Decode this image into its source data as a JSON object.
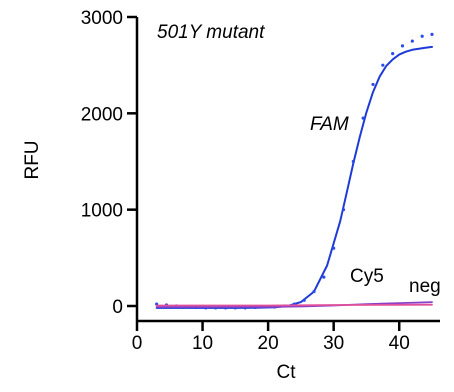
{
  "chart_data": {
    "type": "line",
    "title": "501Y mutant",
    "xlabel": "Ct",
    "ylabel": "RFU",
    "xlim": [
      0,
      45
    ],
    "ylim": [
      0,
      3000
    ],
    "x_ticks": [
      0,
      10,
      20,
      30,
      40
    ],
    "y_ticks": [
      0,
      1000,
      2000,
      3000
    ],
    "x_tick_labels": [
      "0",
      "10",
      "20",
      "30",
      "40"
    ],
    "y_tick_labels": [
      "0",
      "1000",
      "2000",
      "3000"
    ],
    "grid": false,
    "colors": {
      "fam": "#1f3bd6",
      "fam_dots": "#2a4be8",
      "cy5": "#8a3fc8",
      "neg": "#e0509a"
    },
    "annotations": {
      "fam": "FAM",
      "cy5": "Cy5",
      "neg": "neg"
    },
    "series": [
      {
        "name": "FAM",
        "style": "line",
        "x": [
          3,
          6,
          9,
          12,
          15,
          18,
          21,
          23,
          25,
          27,
          29,
          31,
          32,
          33,
          34,
          35,
          36,
          37,
          38,
          39,
          40,
          41,
          42,
          43,
          44,
          45
        ],
        "y": [
          -20,
          -20,
          -20,
          -20,
          -20,
          -18,
          -12,
          0,
          40,
          150,
          420,
          880,
          1180,
          1480,
          1760,
          2010,
          2220,
          2380,
          2490,
          2560,
          2610,
          2640,
          2660,
          2670,
          2680,
          2690
        ]
      },
      {
        "name": "FAM",
        "style": "dots",
        "x": [
          3,
          4.5,
          6,
          7.5,
          9,
          10.5,
          12,
          13.5,
          15,
          16.5,
          18,
          19.5,
          21,
          22.5,
          24,
          25.5,
          27,
          28.5,
          30,
          31.5,
          33,
          34.5,
          36,
          37.5,
          39,
          40.5,
          42,
          43.5,
          45
        ],
        "y": [
          20,
          10,
          0,
          -10,
          -15,
          -20,
          -20,
          -20,
          -20,
          -20,
          -15,
          -10,
          -10,
          0,
          20,
          60,
          150,
          300,
          600,
          1000,
          1500,
          1950,
          2300,
          2500,
          2620,
          2700,
          2750,
          2800,
          2820
        ]
      },
      {
        "name": "Cy5",
        "style": "line",
        "x": [
          3,
          10,
          20,
          25,
          30,
          35,
          40,
          45
        ],
        "y": [
          -10,
          -10,
          -8,
          -5,
          5,
          20,
          30,
          40
        ]
      },
      {
        "name": "neg",
        "style": "line",
        "x": [
          3,
          10,
          20,
          30,
          40,
          45
        ],
        "y": [
          5,
          5,
          5,
          10,
          12,
          14
        ]
      }
    ]
  }
}
